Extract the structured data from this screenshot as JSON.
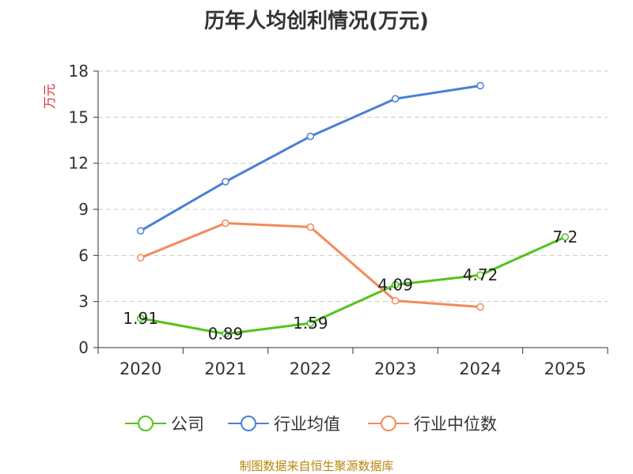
{
  "title": "历年人均创利情况(万元)",
  "source": "制图数据来自恒生聚源数据库",
  "colors": {
    "company": "#52c41a",
    "avg": "#4a7fd8",
    "median": "#f5895a",
    "axis": "#333333",
    "grid": "#cccccc",
    "ylabel": "#e03030"
  },
  "chart_data": {
    "type": "line",
    "title": "历年人均创利情况(万元)",
    "categories": [
      "2020",
      "2021",
      "2022",
      "2023",
      "2024",
      "2025"
    ],
    "ylabel": "万元",
    "xlabel": "",
    "ylim": [
      0,
      18
    ],
    "yticks": [
      "0",
      "3",
      "6",
      "9",
      "12",
      "15",
      "18"
    ],
    "grid": true,
    "legend_position": "bottom",
    "series": [
      {
        "name": "公司",
        "color": "#52c41a",
        "values": [
          1.91,
          0.89,
          1.59,
          4.09,
          4.72,
          7.2
        ],
        "labels": [
          "1.91",
          "0.89",
          "1.59",
          "4.09",
          "4.72",
          "7.2"
        ]
      },
      {
        "name": "行业均值",
        "color": "#4a7fd8",
        "values": [
          7.6,
          10.8,
          13.75,
          16.2,
          17.05,
          null
        ]
      },
      {
        "name": "行业中位数",
        "color": "#f5895a",
        "values": [
          5.85,
          8.1,
          7.85,
          3.05,
          2.65,
          null
        ]
      }
    ]
  }
}
